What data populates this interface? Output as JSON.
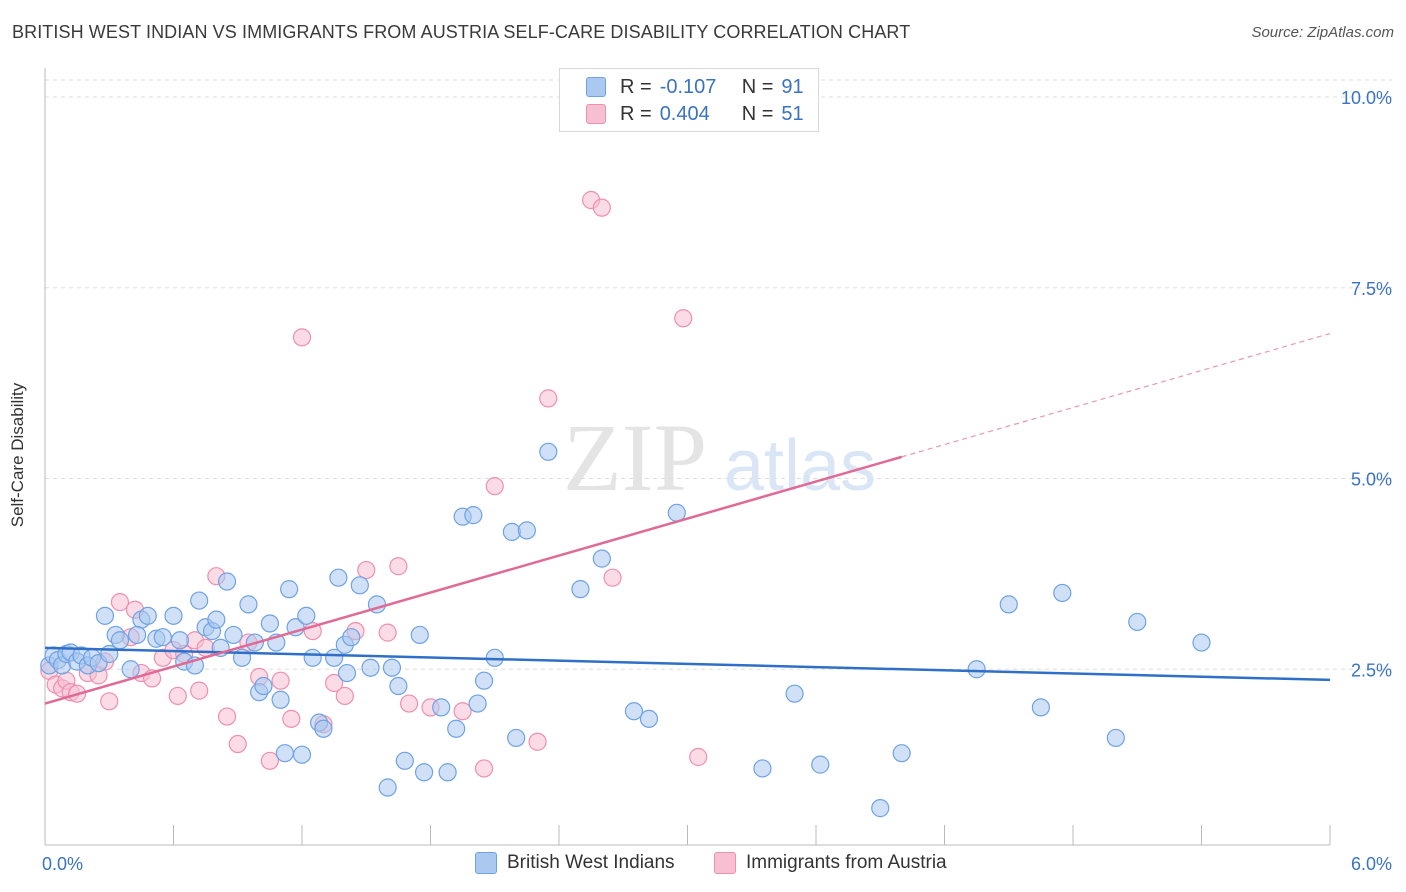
{
  "header": {
    "title": "BRITISH WEST INDIAN VS IMMIGRANTS FROM AUSTRIA SELF-CARE DISABILITY CORRELATION CHART",
    "source": "Source: ZipAtlas.com"
  },
  "watermark": {
    "zip": "ZIP",
    "atlas": "atlas"
  },
  "legend": {
    "r_label": "R =",
    "n_label": "N =",
    "rows": [
      {
        "r": "-0.107",
        "n": "91",
        "color": "#6fa2e4"
      },
      {
        "r": "0.404",
        "n": "51",
        "color": "#ef8fb0"
      }
    ]
  },
  "bottom_legend": [
    "British West Indians",
    "Immigrants from Austria"
  ],
  "colors": {
    "blue_fill": "#aac8f0",
    "blue_stroke": "#6fa2e4",
    "blue_line": "#2f6fc7",
    "pink_fill": "#f7bfd2",
    "pink_stroke": "#ef8fb0",
    "pink_line": "#e06a95",
    "tick": "#3a73c4",
    "grid": "#dddddd"
  },
  "chart_data": {
    "type": "scatter",
    "title": "BRITISH WEST INDIAN VS IMMIGRANTS FROM AUSTRIA SELF-CARE DISABILITY CORRELATION CHART",
    "xlabel": "",
    "ylabel": "Self-Care Disability",
    "xlim": [
      0,
      6.0
    ],
    "ylim": [
      0,
      10.0
    ],
    "x_tick_labels": [
      "0.0%",
      "6.0%"
    ],
    "y_ticks": [
      {
        "value": 2.5,
        "label": "2.5%"
      },
      {
        "value": 5.0,
        "label": "5.0%"
      },
      {
        "value": 7.5,
        "label": "7.5%"
      },
      {
        "value": 10.0,
        "label": "10.0%"
      }
    ],
    "grid": true,
    "series": [
      {
        "name": "British West Indians",
        "r": -0.107,
        "n": 91,
        "trend": {
          "x": [
            0,
            6.0
          ],
          "y": [
            2.78,
            2.36
          ]
        },
        "points": [
          [
            0.02,
            2.55
          ],
          [
            0.04,
            2.68
          ],
          [
            0.06,
            2.62
          ],
          [
            0.08,
            2.55
          ],
          [
            0.1,
            2.7
          ],
          [
            0.12,
            2.72
          ],
          [
            0.15,
            2.6
          ],
          [
            0.17,
            2.68
          ],
          [
            0.2,
            2.55
          ],
          [
            0.22,
            2.65
          ],
          [
            0.28,
            3.2
          ],
          [
            0.33,
            2.95
          ],
          [
            0.35,
            2.88
          ],
          [
            0.4,
            2.5
          ],
          [
            0.45,
            3.15
          ],
          [
            0.48,
            3.2
          ],
          [
            0.52,
            2.9
          ],
          [
            0.55,
            2.92
          ],
          [
            0.6,
            3.2
          ],
          [
            0.63,
            2.88
          ],
          [
            0.65,
            2.6
          ],
          [
            0.7,
            2.55
          ],
          [
            0.72,
            3.4
          ],
          [
            0.75,
            3.05
          ],
          [
            0.78,
            3.0
          ],
          [
            0.8,
            3.15
          ],
          [
            0.82,
            2.78
          ],
          [
            0.85,
            3.65
          ],
          [
            0.88,
            2.95
          ],
          [
            0.92,
            2.65
          ],
          [
            0.95,
            3.35
          ],
          [
            0.98,
            2.85
          ],
          [
            1.0,
            2.2
          ],
          [
            1.02,
            2.28
          ],
          [
            1.05,
            3.1
          ],
          [
            1.08,
            2.85
          ],
          [
            1.1,
            2.1
          ],
          [
            1.12,
            1.4
          ],
          [
            1.14,
            3.55
          ],
          [
            1.17,
            3.05
          ],
          [
            1.2,
            1.38
          ],
          [
            1.22,
            3.2
          ],
          [
            1.25,
            2.65
          ],
          [
            1.28,
            1.8
          ],
          [
            1.3,
            1.72
          ],
          [
            1.35,
            2.65
          ],
          [
            1.37,
            3.7
          ],
          [
            1.4,
            2.82
          ],
          [
            1.41,
            2.45
          ],
          [
            1.43,
            2.92
          ],
          [
            1.47,
            3.6
          ],
          [
            1.52,
            2.52
          ],
          [
            1.55,
            3.35
          ],
          [
            1.6,
            0.95
          ],
          [
            1.62,
            2.52
          ],
          [
            1.65,
            2.28
          ],
          [
            1.68,
            1.3
          ],
          [
            1.75,
            2.95
          ],
          [
            1.77,
            1.15
          ],
          [
            1.85,
            2.0
          ],
          [
            1.88,
            1.15
          ],
          [
            1.92,
            1.72
          ],
          [
            1.95,
            4.5
          ],
          [
            2.0,
            4.52
          ],
          [
            2.02,
            2.05
          ],
          [
            2.05,
            2.35
          ],
          [
            2.1,
            2.65
          ],
          [
            2.18,
            4.3
          ],
          [
            2.2,
            1.6
          ],
          [
            2.25,
            4.32
          ],
          [
            2.35,
            5.35
          ],
          [
            2.5,
            3.55
          ],
          [
            2.6,
            3.95
          ],
          [
            2.75,
            1.95
          ],
          [
            2.82,
            1.85
          ],
          [
            2.95,
            4.55
          ],
          [
            3.35,
            1.2
          ],
          [
            3.5,
            2.18
          ],
          [
            3.62,
            1.25
          ],
          [
            3.9,
            0.68
          ],
          [
            4.0,
            1.4
          ],
          [
            4.35,
            2.5
          ],
          [
            4.5,
            3.35
          ],
          [
            4.65,
            2.0
          ],
          [
            4.75,
            3.5
          ],
          [
            5.0,
            1.6
          ],
          [
            5.1,
            3.12
          ],
          [
            5.4,
            2.85
          ],
          [
            0.25,
            2.58
          ],
          [
            0.3,
            2.7
          ],
          [
            0.43,
            2.95
          ]
        ]
      },
      {
        "name": "Immigrants from Austria",
        "r": 0.404,
        "n": 51,
        "trend": {
          "x": [
            0,
            6.0
          ],
          "y": [
            2.05,
            6.9
          ],
          "solid_until_x": 4.0
        },
        "points": [
          [
            0.02,
            2.48
          ],
          [
            0.05,
            2.3
          ],
          [
            0.08,
            2.25
          ],
          [
            0.1,
            2.35
          ],
          [
            0.12,
            2.2
          ],
          [
            0.15,
            2.18
          ],
          [
            0.2,
            2.45
          ],
          [
            0.25,
            2.42
          ],
          [
            0.28,
            2.6
          ],
          [
            0.3,
            2.08
          ],
          [
            0.35,
            3.38
          ],
          [
            0.4,
            2.92
          ],
          [
            0.42,
            3.28
          ],
          [
            0.45,
            2.45
          ],
          [
            0.5,
            2.38
          ],
          [
            0.55,
            2.65
          ],
          [
            0.6,
            2.75
          ],
          [
            0.62,
            2.15
          ],
          [
            0.65,
            2.7
          ],
          [
            0.7,
            2.88
          ],
          [
            0.72,
            2.22
          ],
          [
            0.75,
            2.78
          ],
          [
            0.8,
            3.72
          ],
          [
            0.85,
            1.88
          ],
          [
            0.9,
            1.52
          ],
          [
            0.95,
            2.85
          ],
          [
            1.0,
            2.4
          ],
          [
            1.05,
            1.3
          ],
          [
            1.1,
            2.35
          ],
          [
            1.15,
            1.85
          ],
          [
            1.2,
            6.85
          ],
          [
            1.25,
            3.0
          ],
          [
            1.3,
            1.78
          ],
          [
            1.35,
            2.32
          ],
          [
            1.4,
            2.15
          ],
          [
            1.45,
            3.0
          ],
          [
            1.5,
            3.8
          ],
          [
            1.6,
            2.98
          ],
          [
            1.65,
            3.85
          ],
          [
            1.7,
            2.05
          ],
          [
            1.8,
            2.0
          ],
          [
            1.95,
            1.95
          ],
          [
            2.05,
            1.2
          ],
          [
            2.1,
            4.9
          ],
          [
            2.3,
            1.55
          ],
          [
            2.35,
            6.05
          ],
          [
            2.55,
            8.65
          ],
          [
            2.6,
            8.55
          ],
          [
            2.65,
            3.7
          ],
          [
            2.98,
            7.1
          ],
          [
            3.05,
            1.35
          ]
        ]
      }
    ]
  }
}
